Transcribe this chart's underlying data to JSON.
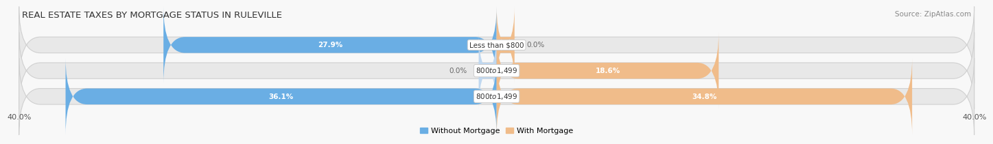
{
  "title": "REAL ESTATE TAXES BY MORTGAGE STATUS IN RULEVILLE",
  "source": "Source: ZipAtlas.com",
  "rows": [
    {
      "label": "Less than $800",
      "without_mortgage": 27.9,
      "with_mortgage": 0.0
    },
    {
      "label": "$800 to $1,499",
      "without_mortgage": 0.0,
      "with_mortgage": 18.6
    },
    {
      "label": "$800 to $1,499",
      "without_mortgage": 36.1,
      "with_mortgage": 34.8
    }
  ],
  "x_min": -40.0,
  "x_max": 40.0,
  "color_without": "#6aaee4",
  "color_with": "#f0bc8a",
  "color_without_light": "#c0d8f0",
  "bar_height": 0.62,
  "bg_bar_color": "#e8e8e8",
  "bg_bar_edge": "#d0d0d0",
  "legend_without": "Without Mortgage",
  "legend_with": "With Mortgage",
  "title_fontsize": 9.5,
  "source_fontsize": 7.5,
  "label_fontsize": 7.5,
  "value_fontsize": 7.5,
  "fig_bg": "#f8f8f8"
}
